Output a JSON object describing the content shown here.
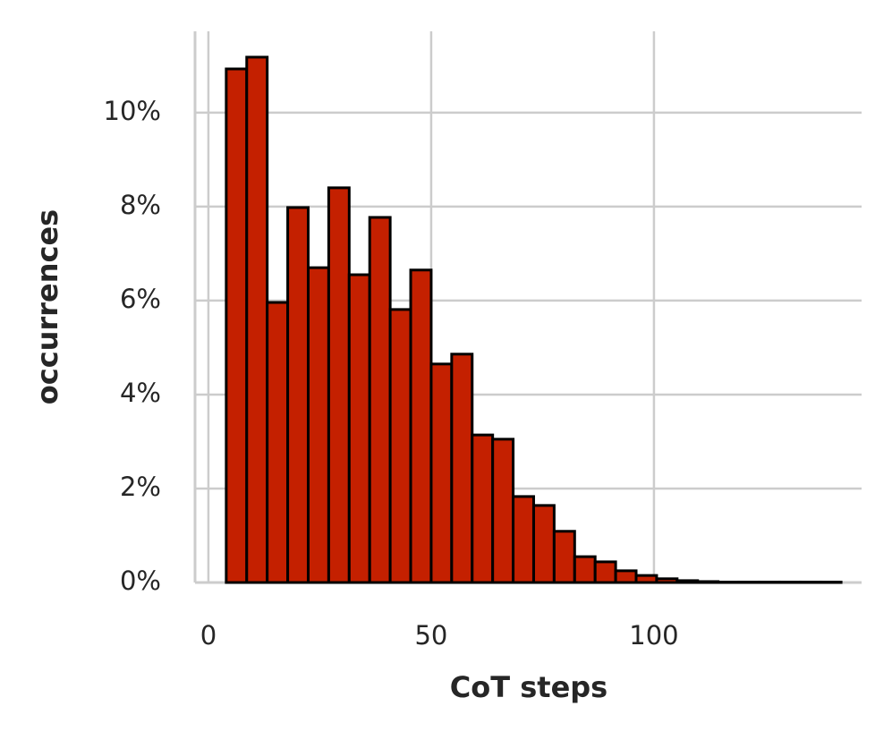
{
  "chart_data": {
    "type": "histogram",
    "xlabel": "CoT steps",
    "ylabel": "occurrences",
    "bins": [
      4,
      8.6,
      13.2,
      17.8,
      22.4,
      27,
      31.6,
      36.2,
      40.8,
      45.4,
      50,
      54.6,
      59.2,
      63.8,
      68.4,
      73,
      77.6,
      82.2,
      86.8,
      91.4,
      96,
      100.6,
      105.2,
      109.8,
      114.4,
      119,
      123.6,
      128.2,
      132.8,
      137.4,
      142
    ],
    "values": [
      10.93,
      11.18,
      5.96,
      7.98,
      6.7,
      8.4,
      6.55,
      7.77,
      5.81,
      6.65,
      4.65,
      4.86,
      3.14,
      3.05,
      1.83,
      1.64,
      1.09,
      0.55,
      0.44,
      0.25,
      0.15,
      0.08,
      0.04,
      0.02,
      0.01,
      0.01,
      0.01,
      0.01,
      0.01,
      0.01
    ],
    "color": "#c42000",
    "edgecolor": "#000000",
    "xlim": [
      -3,
      146.6
    ],
    "ylim": [
      0,
      11.73
    ],
    "xticks": [
      0,
      50,
      100
    ],
    "yticks": [
      {
        "value": 0,
        "label": "0%"
      },
      {
        "value": 2,
        "label": "2%"
      },
      {
        "value": 4,
        "label": "4%"
      },
      {
        "value": 6,
        "label": "6%"
      },
      {
        "value": 8,
        "label": "8%"
      },
      {
        "value": 10,
        "label": "10%"
      }
    ],
    "grid": true
  }
}
